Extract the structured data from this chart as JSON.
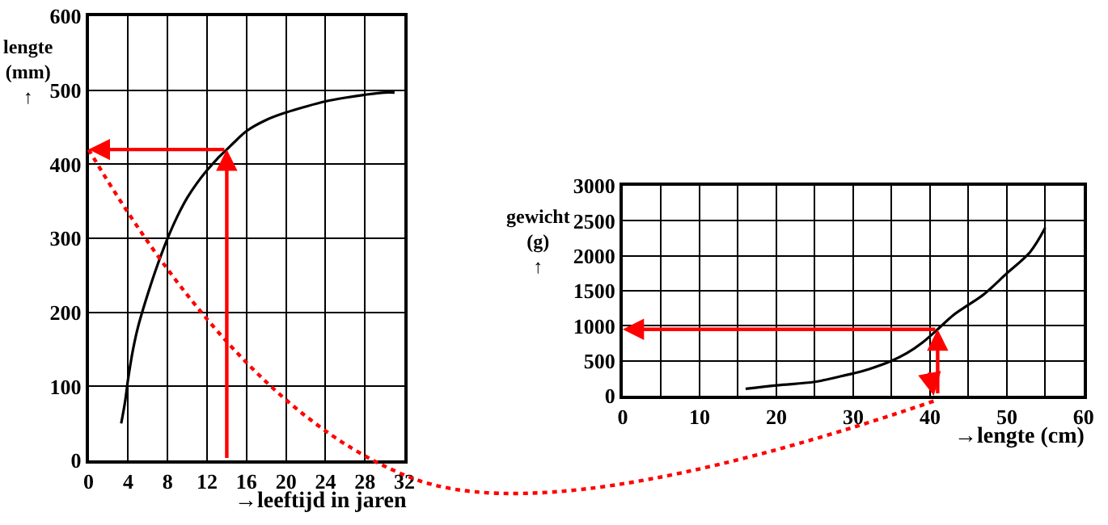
{
  "chart_data": [
    {
      "type": "line",
      "xlabel": "→leeftijd in jaren",
      "ylabel": "lengte\n(mm)\n↑",
      "xlim": [
        0,
        32
      ],
      "xticks": [
        0,
        4,
        8,
        12,
        16,
        20,
        24,
        28,
        32
      ],
      "ylim": [
        0,
        600
      ],
      "yticks": [
        0,
        100,
        200,
        300,
        400,
        500,
        600
      ],
      "grid": true,
      "series": [
        {
          "color": "#000000",
          "x": [
            3.3,
            3.7,
            4,
            4.5,
            5,
            6,
            7,
            8,
            9,
            10,
            11,
            12,
            13,
            14,
            15,
            16,
            18,
            20,
            22,
            24,
            26,
            28,
            30,
            31
          ],
          "values": [
            50,
            80,
            110,
            150,
            180,
            225,
            265,
            300,
            330,
            355,
            375,
            392,
            407,
            420,
            433,
            445,
            460,
            470,
            478,
            485,
            490,
            494,
            497,
            497
          ]
        }
      ]
    },
    {
      "type": "line",
      "xlabel": "→lengte (cm)",
      "ylabel": "gewicht\n(g)\n↑",
      "xlim": [
        0,
        60
      ],
      "xticks": [
        0,
        {
          "value": 5,
          "label": null
        },
        10,
        {
          "value": 15,
          "label": null
        },
        20,
        {
          "value": 25,
          "label": null
        },
        30,
        {
          "value": 35,
          "label": null
        },
        40,
        {
          "value": 45,
          "label": null
        },
        50,
        {
          "value": 55,
          "label": null
        },
        60
      ],
      "ylim": [
        0,
        3000
      ],
      "yticks": [
        0,
        500,
        1000,
        1500,
        2000,
        2500,
        3000
      ],
      "grid": true,
      "series": [
        {
          "color": "#000000",
          "x": [
            16,
            20,
            25,
            28,
            30,
            32,
            35,
            37,
            39,
            41,
            43,
            45,
            47,
            50,
            53,
            55
          ],
          "values": [
            100,
            150,
            200,
            270,
            320,
            380,
            500,
            610,
            760,
            950,
            1150,
            1300,
            1450,
            1750,
            2050,
            2400
          ]
        }
      ]
    }
  ]
}
